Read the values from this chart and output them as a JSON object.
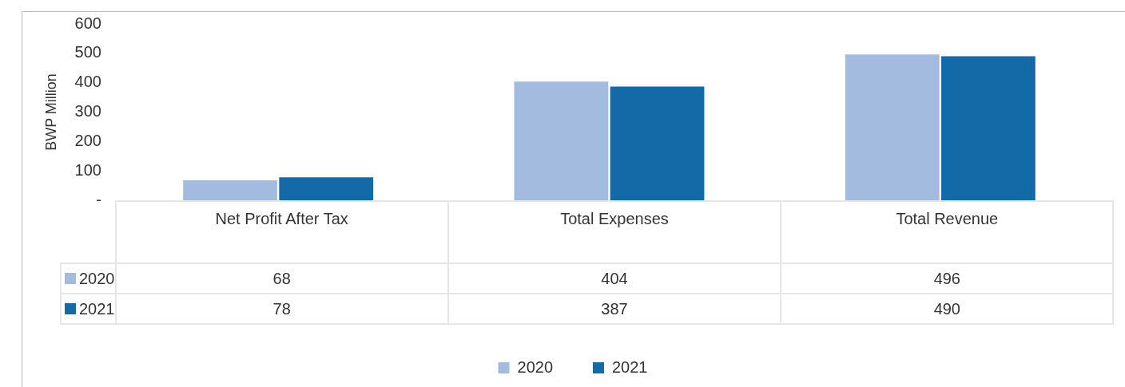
{
  "chart_data": {
    "type": "bar",
    "ylabel": "BWP Million",
    "categories": [
      "Net Profit  After Tax",
      "Total  Expenses",
      "Total Revenue"
    ],
    "series": [
      {
        "name": "2020",
        "color": "#a3bbdf",
        "values": [
          68,
          404,
          496
        ]
      },
      {
        "name": "2021",
        "color": "#1469a7",
        "values": [
          78,
          387,
          490
        ]
      }
    ],
    "ylim": [
      0,
      600
    ],
    "yticks": [
      {
        "value": 0,
        "label": "-"
      },
      100,
      200,
      300,
      400,
      500,
      600
    ],
    "grid": false,
    "legend": "bottom",
    "data_labels": true
  }
}
